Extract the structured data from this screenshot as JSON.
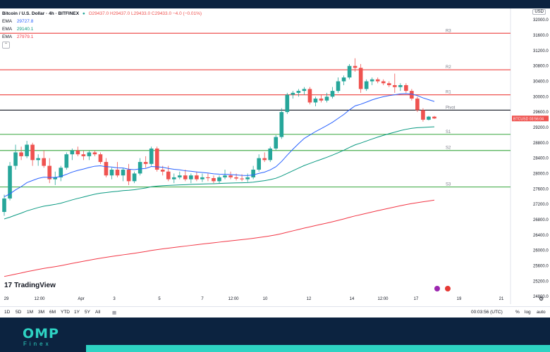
{
  "header": {
    "symbol_title": "Bitcoin / U.S. Dollar · 4h · BITFINEX",
    "ohlc": "O29437.0 H29437.0 L29433.0 C29433.0 −4.0 (−0.01%)",
    "currency_button": "USD"
  },
  "legend": {
    "ema_items": [
      {
        "label": "EMA",
        "value": "29727.8",
        "color": "#2962ff"
      },
      {
        "label": "EMA",
        "value": "29140.1",
        "color": "#089981"
      },
      {
        "label": "EMA",
        "value": "27979.1",
        "color": "#f23645"
      }
    ]
  },
  "price_tag": {
    "symbol": "BTCUSD",
    "countdown": "03:56:04"
  },
  "branding": {
    "tradingview": "TradingView",
    "company": "OMP",
    "company_sub": "Finex"
  },
  "time_ranges": [
    "1D",
    "5D",
    "1M",
    "3M",
    "6M",
    "YTD",
    "1Y",
    "5Y",
    "All"
  ],
  "status": {
    "clock": "00:03:56 (UTC)",
    "percent": "%",
    "log": "log",
    "auto": "auto"
  },
  "colors": {
    "up": "#26a69a",
    "down": "#ef5350",
    "resistance": "#ef5350",
    "support": "#4caf50",
    "pivot": "#131722",
    "ema_fast": "#2962ff",
    "ema_mid": "#089981",
    "ema_slow": "#f23645",
    "brand_dark": "#0c2340",
    "brand_accent": "#2ed3c3"
  },
  "chart_data": {
    "type": "candlestick",
    "timeframe": "4h",
    "x_tick_labels": [
      "29",
      "12:00",
      "Apr",
      "3",
      "5",
      "7",
      "12:00",
      "10",
      "12",
      "14",
      "12:00",
      "17",
      "19",
      "21"
    ],
    "y_tick_labels": [
      24800,
      25200,
      25600,
      26000,
      26400,
      26800,
      27200,
      27600,
      28000,
      28400,
      28800,
      29200,
      29600,
      30000,
      30400,
      30800,
      31200,
      31600,
      32000
    ],
    "ylim": [
      24600,
      32150
    ],
    "levels": [
      {
        "name": "R3",
        "value": 31650,
        "kind": "resistance"
      },
      {
        "name": "R2",
        "value": 30700,
        "kind": "resistance"
      },
      {
        "name": "R1",
        "value": 30050,
        "kind": "resistance"
      },
      {
        "name": "Pivot",
        "value": 29650,
        "kind": "pivot"
      },
      {
        "name": "S1",
        "value": 29020,
        "kind": "support"
      },
      {
        "name": "S2",
        "value": 28600,
        "kind": "support"
      },
      {
        "name": "S3",
        "value": 27650,
        "kind": "support"
      }
    ],
    "last_price": 29433,
    "candles": [
      [
        27000,
        27450,
        26900,
        27350
      ],
      [
        27350,
        28300,
        27300,
        28200
      ],
      [
        28200,
        28750,
        28100,
        28550
      ],
      [
        28550,
        28700,
        28350,
        28450
      ],
      [
        28450,
        28850,
        28400,
        28750
      ],
      [
        28750,
        28800,
        28200,
        28350
      ],
      [
        28350,
        28500,
        28200,
        28400
      ],
      [
        28400,
        28600,
        28150,
        28200
      ],
      [
        28200,
        28400,
        27750,
        27850
      ],
      [
        27850,
        28050,
        27700,
        27900
      ],
      [
        27900,
        28200,
        27800,
        28150
      ],
      [
        28150,
        28550,
        28100,
        28500
      ],
      [
        28500,
        28650,
        28350,
        28600
      ],
      [
        28600,
        28700,
        28450,
        28500
      ],
      [
        28500,
        28600,
        28350,
        28450
      ],
      [
        28450,
        28600,
        28350,
        28550
      ],
      [
        28550,
        28600,
        28450,
        28500
      ],
      [
        28500,
        28550,
        28250,
        28300
      ],
      [
        28300,
        28400,
        27900,
        27950
      ],
      [
        27950,
        28150,
        27850,
        28100
      ],
      [
        28100,
        28300,
        27900,
        27950
      ],
      [
        27950,
        28150,
        27800,
        28100
      ],
      [
        28100,
        28250,
        27700,
        27800
      ],
      [
        27800,
        28050,
        27750,
        28000
      ],
      [
        28000,
        28400,
        27950,
        28300
      ],
      [
        28300,
        28450,
        28150,
        28250
      ],
      [
        28250,
        28700,
        28200,
        28650
      ],
      [
        28650,
        28700,
        28050,
        28100
      ],
      [
        28100,
        28200,
        27950,
        28050
      ],
      [
        28050,
        28200,
        27800,
        27850
      ],
      [
        27850,
        28000,
        27750,
        27900
      ],
      [
        27900,
        28050,
        27850,
        27950
      ],
      [
        27950,
        28100,
        27800,
        27850
      ],
      [
        27850,
        28000,
        27750,
        27950
      ],
      [
        27950,
        28050,
        27800,
        27850
      ],
      [
        27850,
        28000,
        27780,
        27900
      ],
      [
        27900,
        28000,
        27800,
        27880
      ],
      [
        27880,
        27950,
        27750,
        27800
      ],
      [
        27800,
        27950,
        27750,
        27900
      ],
      [
        27900,
        28100,
        27850,
        27950
      ],
      [
        27950,
        28050,
        27850,
        27900
      ],
      [
        27900,
        28000,
        27820,
        27870
      ],
      [
        27870,
        27980,
        27800,
        27850
      ],
      [
        27850,
        28000,
        27780,
        27900
      ],
      [
        27900,
        28200,
        27850,
        28100
      ],
      [
        28100,
        28500,
        28050,
        28400
      ],
      [
        28400,
        28550,
        28300,
        28350
      ],
      [
        28350,
        28700,
        28300,
        28650
      ],
      [
        28650,
        29000,
        28600,
        28950
      ],
      [
        28950,
        29700,
        28900,
        29600
      ],
      [
        29600,
        30100,
        29550,
        30050
      ],
      [
        30050,
        30150,
        29950,
        30100
      ],
      [
        30100,
        30200,
        30000,
        30150
      ],
      [
        30150,
        30250,
        30050,
        30200
      ],
      [
        30200,
        30250,
        29800,
        29850
      ],
      [
        29850,
        30000,
        29750,
        29950
      ],
      [
        29950,
        30050,
        29850,
        29900
      ],
      [
        29900,
        30100,
        29850,
        30000
      ],
      [
        30000,
        30250,
        29950,
        30150
      ],
      [
        30150,
        30500,
        30100,
        30400
      ],
      [
        30400,
        30550,
        30300,
        30500
      ],
      [
        30500,
        30850,
        30450,
        30800
      ],
      [
        30800,
        31000,
        30650,
        30750
      ],
      [
        30750,
        30850,
        30100,
        30200
      ],
      [
        30200,
        30450,
        30150,
        30400
      ],
      [
        30400,
        30500,
        30300,
        30450
      ],
      [
        30450,
        30500,
        30350,
        30400
      ],
      [
        30400,
        30450,
        30300,
        30350
      ],
      [
        30350,
        30400,
        30250,
        30300
      ],
      [
        30300,
        30600,
        30100,
        30250
      ],
      [
        30250,
        30350,
        30150,
        30300
      ],
      [
        30300,
        30350,
        30100,
        30150
      ],
      [
        30150,
        30200,
        29900,
        29950
      ],
      [
        29950,
        30000,
        29600,
        29650
      ],
      [
        29650,
        29700,
        29350,
        29400
      ],
      [
        29400,
        29500,
        29380,
        29480
      ],
      [
        29480,
        29500,
        29420,
        29433
      ]
    ]
  }
}
